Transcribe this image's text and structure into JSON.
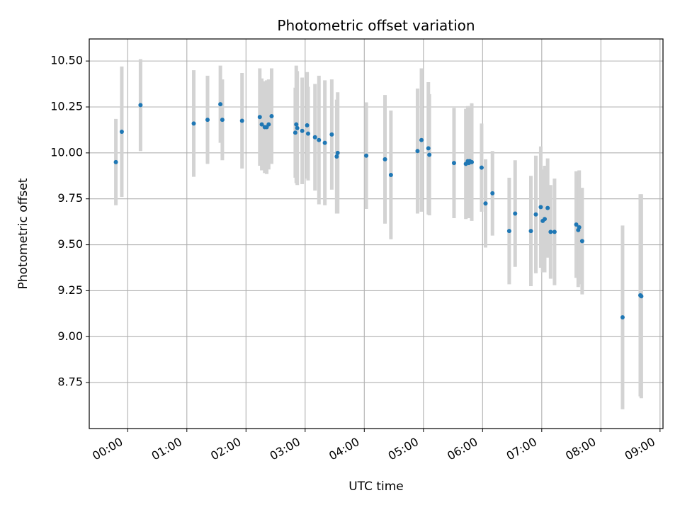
{
  "chart_data": {
    "type": "scatter",
    "title": "Photometric offset variation",
    "xlabel": "UTC time",
    "ylabel": "Photometric offset",
    "x_unit": "minutes after 00:00 UTC",
    "xlim": [
      -39,
      543
    ],
    "ylim": [
      8.5,
      10.62
    ],
    "grid": true,
    "legend": "none",
    "x_ticks": [
      0,
      60,
      120,
      180,
      240,
      300,
      360,
      420,
      480,
      540
    ],
    "x_tick_labels": [
      "00:00",
      "01:00",
      "02:00",
      "03:00",
      "04:00",
      "05:00",
      "06:00",
      "07:00",
      "08:00",
      "09:00"
    ],
    "y_ticks": [
      8.75,
      9.0,
      9.25,
      9.5,
      9.75,
      10.0,
      10.25,
      10.5
    ],
    "y_tick_labels": [
      "8.75",
      "9.00",
      "9.25",
      "9.50",
      "9.75",
      "10.00",
      "10.25",
      "10.50"
    ],
    "colors": {
      "marker": "#1f77b4",
      "errorbar": "#d3d3d3",
      "grid": "#b0b0b0"
    },
    "series": [
      {
        "x": [
          -12,
          -6,
          13,
          67,
          81,
          94,
          96,
          116,
          134,
          136,
          139,
          141,
          143,
          146,
          170,
          171,
          172,
          177,
          182,
          183,
          190,
          194,
          200,
          207,
          212,
          213,
          242,
          261,
          267,
          294,
          298,
          305,
          306,
          331,
          343,
          345,
          346,
          347,
          349,
          359,
          363,
          370,
          387,
          393,
          409,
          414,
          419,
          421,
          423,
          426,
          429,
          433,
          455,
          457,
          458,
          461,
          502,
          520,
          521
        ],
        "y": [
          9.95,
          10.115,
          10.26,
          10.16,
          10.18,
          10.265,
          10.18,
          10.175,
          10.195,
          10.155,
          10.14,
          10.14,
          10.155,
          10.2,
          10.11,
          10.155,
          10.135,
          10.12,
          10.15,
          10.105,
          10.085,
          10.07,
          10.055,
          10.1,
          9.98,
          10.0,
          9.985,
          9.965,
          9.88,
          10.01,
          10.07,
          10.025,
          9.99,
          9.945,
          9.94,
          9.955,
          9.945,
          9.955,
          9.95,
          9.92,
          9.725,
          9.78,
          9.575,
          9.67,
          9.575,
          9.665,
          9.705,
          9.63,
          9.64,
          9.7,
          9.57,
          9.57,
          9.61,
          9.58,
          9.595,
          9.52,
          9.105,
          9.225,
          9.22
        ],
        "err": [
          0.235,
          0.355,
          0.25,
          0.29,
          0.24,
          0.21,
          0.22,
          0.26,
          0.265,
          0.25,
          0.25,
          0.255,
          0.245,
          0.26,
          0.245,
          0.32,
          0.31,
          0.29,
          0.29,
          0.255,
          0.29,
          0.35,
          0.34,
          0.3,
          0.31,
          0.33,
          0.29,
          0.35,
          0.35,
          0.34,
          0.39,
          0.36,
          0.33,
          0.3,
          0.3,
          0.3,
          0.3,
          0.3,
          0.32,
          0.24,
          0.24,
          0.23,
          0.29,
          0.29,
          0.3,
          0.32,
          0.33,
          0.28,
          0.29,
          0.27,
          0.255,
          0.29,
          0.29,
          0.31,
          0.31,
          0.29,
          0.5,
          0.55,
          0.555
        ]
      }
    ]
  }
}
